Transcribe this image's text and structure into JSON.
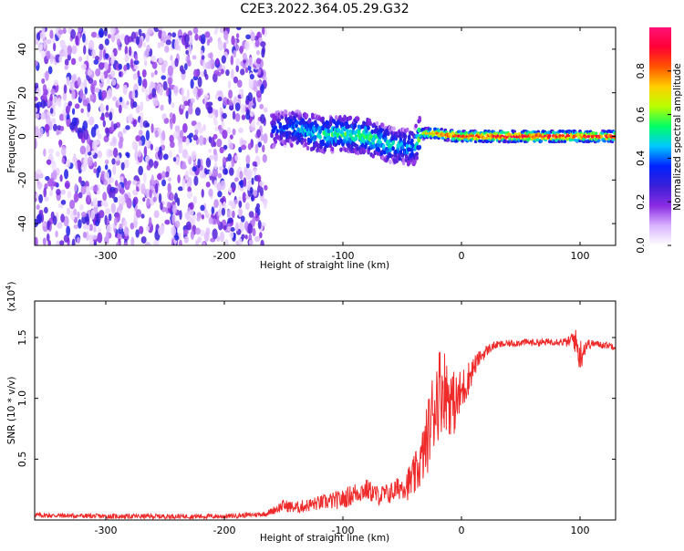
{
  "title": "C2E3.2022.364.05.29.G32",
  "colors": {
    "line": "#ee2a2a",
    "frame": "#000000",
    "background": "#ffffff"
  },
  "chart_data": [
    {
      "type": "heatmap",
      "xlabel": "Height of straight line (km)",
      "ylabel": "Frequency (Hz)",
      "xlim": [
        -360,
        130
      ],
      "ylim": [
        -50,
        50
      ],
      "x_ticks": [
        -300,
        -200,
        -100,
        0,
        100
      ],
      "y_ticks": [
        -40,
        -20,
        0,
        20,
        40
      ],
      "colorbar": {
        "label": "Normalized spectral amplitude",
        "range": [
          0,
          1
        ],
        "ticks": [
          "0.0",
          "0.2",
          "0.4",
          "0.6",
          "0.8"
        ],
        "colormap": [
          "#ffffff",
          "#d9b3ff",
          "#8a2be2",
          "#3a1fd6",
          "#0022ff",
          "#00c8ff",
          "#00ff66",
          "#b8ff00",
          "#ffd000",
          "#ff5500",
          "#ff0033",
          "#ff1177"
        ]
      },
      "noise_region_x": [
        -360,
        -165
      ],
      "signal_ridge": [
        {
          "x": -160,
          "f": 3,
          "a": 0.35
        },
        {
          "x": -140,
          "f": 4,
          "a": 0.45
        },
        {
          "x": -120,
          "f": 1,
          "a": 0.5
        },
        {
          "x": -100,
          "f": 1,
          "a": 0.55
        },
        {
          "x": -80,
          "f": 0,
          "a": 0.55
        },
        {
          "x": -60,
          "f": -4,
          "a": 0.5
        },
        {
          "x": -40,
          "f": -5,
          "a": 0.45
        },
        {
          "x": -35,
          "f": 1,
          "a": 0.65
        },
        {
          "x": -25,
          "f": 1.5,
          "a": 0.8
        },
        {
          "x": -10,
          "f": 0.5,
          "a": 0.85
        },
        {
          "x": 0,
          "f": 0,
          "a": 0.9
        },
        {
          "x": 50,
          "f": 0,
          "a": 0.95
        },
        {
          "x": 100,
          "f": 0,
          "a": 0.92
        },
        {
          "x": 130,
          "f": 0,
          "a": 0.9
        }
      ]
    },
    {
      "type": "line",
      "xlabel": "Height of straight line (km)",
      "ylabel": "SNR (10 * v/v)",
      "y_multiplier": "(x10",
      "y_multiplier_exp": "4",
      "y_multiplier_close": ")",
      "xlim": [
        -360,
        130
      ],
      "ylim": [
        0,
        1.8
      ],
      "x_ticks": [
        -300,
        -200,
        -100,
        0,
        100
      ],
      "y_ticks": [
        "0.5",
        "1.0",
        "1.5"
      ],
      "series": [
        {
          "x": [
            -360,
            -300,
            -250,
            -200,
            -180,
            -165,
            -150,
            -140,
            -120,
            -100,
            -90,
            -80,
            -70,
            -60,
            -50,
            -45,
            -40,
            -35,
            -30,
            -25,
            -20,
            -15,
            -10,
            -5,
            0,
            5,
            10,
            15,
            20,
            25,
            30,
            40,
            50,
            60,
            70,
            80,
            90,
            95,
            100,
            105,
            110,
            120,
            130
          ],
          "y": [
            0.04,
            0.03,
            0.03,
            0.03,
            0.04,
            0.05,
            0.12,
            0.1,
            0.14,
            0.17,
            0.22,
            0.25,
            0.2,
            0.22,
            0.28,
            0.3,
            0.35,
            0.45,
            0.62,
            0.85,
            1.05,
            1.1,
            1.0,
            0.95,
            1.05,
            1.15,
            1.25,
            1.33,
            1.38,
            1.42,
            1.44,
            1.45,
            1.46,
            1.46,
            1.46,
            1.47,
            1.46,
            1.5,
            1.35,
            1.44,
            1.45,
            1.44,
            1.43
          ],
          "jitter": [
            0.02,
            0.02,
            0.02,
            0.02,
            0.02,
            0.02,
            0.05,
            0.05,
            0.06,
            0.08,
            0.09,
            0.09,
            0.08,
            0.09,
            0.1,
            0.14,
            0.18,
            0.2,
            0.28,
            0.35,
            0.4,
            0.35,
            0.3,
            0.25,
            0.2,
            0.15,
            0.1,
            0.06,
            0.05,
            0.04,
            0.03,
            0.03,
            0.03,
            0.03,
            0.03,
            0.03,
            0.04,
            0.1,
            0.15,
            0.06,
            0.03,
            0.03,
            0.03
          ]
        }
      ]
    }
  ]
}
